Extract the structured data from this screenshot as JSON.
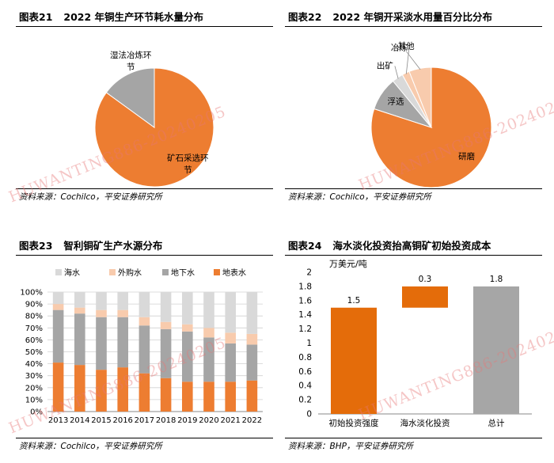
{
  "colors": {
    "orange": "#ED7D31",
    "gray": "#A5A5A5",
    "light_gray": "#D9D9D9",
    "light_orange": "#F8CBAD",
    "pale": "#FBE5D6",
    "wf_orange": "#E46C0A",
    "wf_gray": "#A6A6A6",
    "watermark": "#E87878"
  },
  "watermark": "HUWANTING886-20240205",
  "panels": [
    {
      "id": "fig21",
      "num": "图表21",
      "title": "2022 年铜生产环节耗水量分布",
      "source": "资料来源：Cochilco，平安证券研究所"
    },
    {
      "id": "fig22",
      "num": "图表22",
      "title": "2022 年铜开采淡水用量百分比分布",
      "source": "资料来源：Cochilco，平安证券研究所"
    },
    {
      "id": "fig23",
      "num": "图表23",
      "title": "智利铜矿生产水源分布",
      "source": "资料来源：Cochilco，平安证券研究所"
    },
    {
      "id": "fig24",
      "num": "图表24",
      "title": "海水淡化投资抬高铜矿初始投资成本",
      "source": "资料来源：BHP，平安证券研究所"
    }
  ],
  "chart_data": [
    {
      "id": "fig21",
      "type": "pie",
      "title": "2022 年铜生产环节耗水量分布",
      "slices": [
        {
          "label": "矿石采选环节",
          "value": 85
        },
        {
          "label": "湿法冶炼环节",
          "value": 15
        }
      ]
    },
    {
      "id": "fig22",
      "type": "pie",
      "title": "2022 年铜开采淡水用量百分比分布",
      "slices": [
        {
          "label": "研磨",
          "value": 80
        },
        {
          "label": "浮选",
          "value": 9
        },
        {
          "label": "出矿",
          "value": 3
        },
        {
          "label": "冶炼",
          "value": 2
        },
        {
          "label": "其他",
          "value": 6
        }
      ]
    },
    {
      "id": "fig23",
      "type": "bar",
      "stacked": true,
      "title": "智利铜矿生产水源分布",
      "categories": [
        "2013",
        "2014",
        "2015",
        "2016",
        "2017",
        "2018",
        "2019",
        "2020",
        "2021",
        "2022"
      ],
      "series": [
        {
          "name": "地表水",
          "values": [
            41,
            39,
            35,
            37,
            32,
            28,
            25,
            25,
            25,
            26
          ]
        },
        {
          "name": "地下水",
          "values": [
            44,
            43,
            44,
            42,
            40,
            41,
            42,
            37,
            32,
            30
          ]
        },
        {
          "name": "外购水",
          "values": [
            5,
            5,
            6,
            6,
            7,
            6,
            6,
            8,
            9,
            9
          ]
        },
        {
          "name": "海水",
          "values": [
            10,
            13,
            15,
            15,
            21,
            25,
            27,
            30,
            34,
            35
          ]
        }
      ],
      "legend": [
        "海水",
        "外购水",
        "地下水",
        "地表水"
      ],
      "ylim": [
        0,
        100
      ],
      "yticks": [
        "0%",
        "10%",
        "20%",
        "30%",
        "40%",
        "50%",
        "60%",
        "70%",
        "80%",
        "90%",
        "100%"
      ],
      "legend_position": "top"
    },
    {
      "id": "fig24",
      "type": "bar",
      "variant": "waterfall",
      "title": "海水淡化投资抬高铜矿初始投资成本",
      "ylabel": "万美元/吨",
      "categories": [
        "初始投资强度",
        "海水淡化投资",
        "总计"
      ],
      "values": [
        1.5,
        0.3,
        1.8
      ],
      "value_labels": [
        "1.5",
        "0.3",
        "1.8"
      ],
      "ylim": [
        0,
        2.0
      ],
      "yticks": [
        "0",
        "0.2",
        "0.4",
        "0.6",
        "0.8",
        "1",
        "1.2",
        "1.4",
        "1.6",
        "1.8",
        "2"
      ]
    }
  ]
}
